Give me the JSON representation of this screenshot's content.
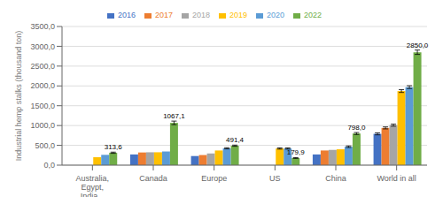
{
  "chart_data": {
    "type": "bar",
    "categories": [
      "Australia,\nEgypt,\nIndia...",
      "Canada",
      "Europe",
      "US",
      "China",
      "World in all"
    ],
    "series": [
      {
        "name": "2016",
        "color": "#4472C4",
        "values": [
          0,
          270,
          230,
          0,
          270,
          790
        ],
        "errors": [
          0,
          0,
          0,
          0,
          0,
          25
        ]
      },
      {
        "name": "2017",
        "color": "#ED7D31",
        "values": [
          0,
          320,
          255,
          0,
          370,
          940
        ],
        "errors": [
          0,
          0,
          0,
          0,
          0,
          25
        ]
      },
      {
        "name": "2018",
        "color": "#A5A5A5",
        "values": [
          0,
          325,
          295,
          0,
          385,
          1010
        ],
        "errors": [
          0,
          0,
          0,
          0,
          0,
          25
        ]
      },
      {
        "name": "2019",
        "color": "#FFC000",
        "values": [
          200,
          325,
          370,
          420,
          400,
          1870
        ],
        "errors": [
          0,
          0,
          0,
          15,
          0,
          35
        ]
      },
      {
        "name": "2020",
        "color": "#5B9BD5",
        "values": [
          260,
          345,
          425,
          420,
          465,
          1970
        ],
        "errors": [
          0,
          0,
          15,
          15,
          20,
          35
        ]
      },
      {
        "name": "2022",
        "color": "#70AD47",
        "values": [
          313.6,
          1067.1,
          491.4,
          179.9,
          798.0,
          2850.0
        ],
        "errors": [
          15,
          45,
          15,
          10,
          25,
          55
        ],
        "data_labels": true,
        "value_labels": [
          "313,6",
          "1067,1",
          "491,4",
          "179,9",
          "798,0",
          "2850,0"
        ]
      }
    ],
    "ylabel": "Industrial hemp stalks (thousand ton)",
    "ylim": [
      0,
      3500
    ],
    "yticks": [
      {
        "value": 0,
        "label": "0,0"
      },
      {
        "value": 500,
        "label": "500,0"
      },
      {
        "value": 1000,
        "label": "1000,0"
      },
      {
        "value": 1500,
        "label": "1500,0"
      },
      {
        "value": 2000,
        "label": "2000,0"
      },
      {
        "value": 2500,
        "label": "2500,0"
      },
      {
        "value": 3000,
        "label": "3000,0"
      },
      {
        "value": 3500,
        "label": "3500,0"
      }
    ],
    "grid": true,
    "legend": "top"
  }
}
